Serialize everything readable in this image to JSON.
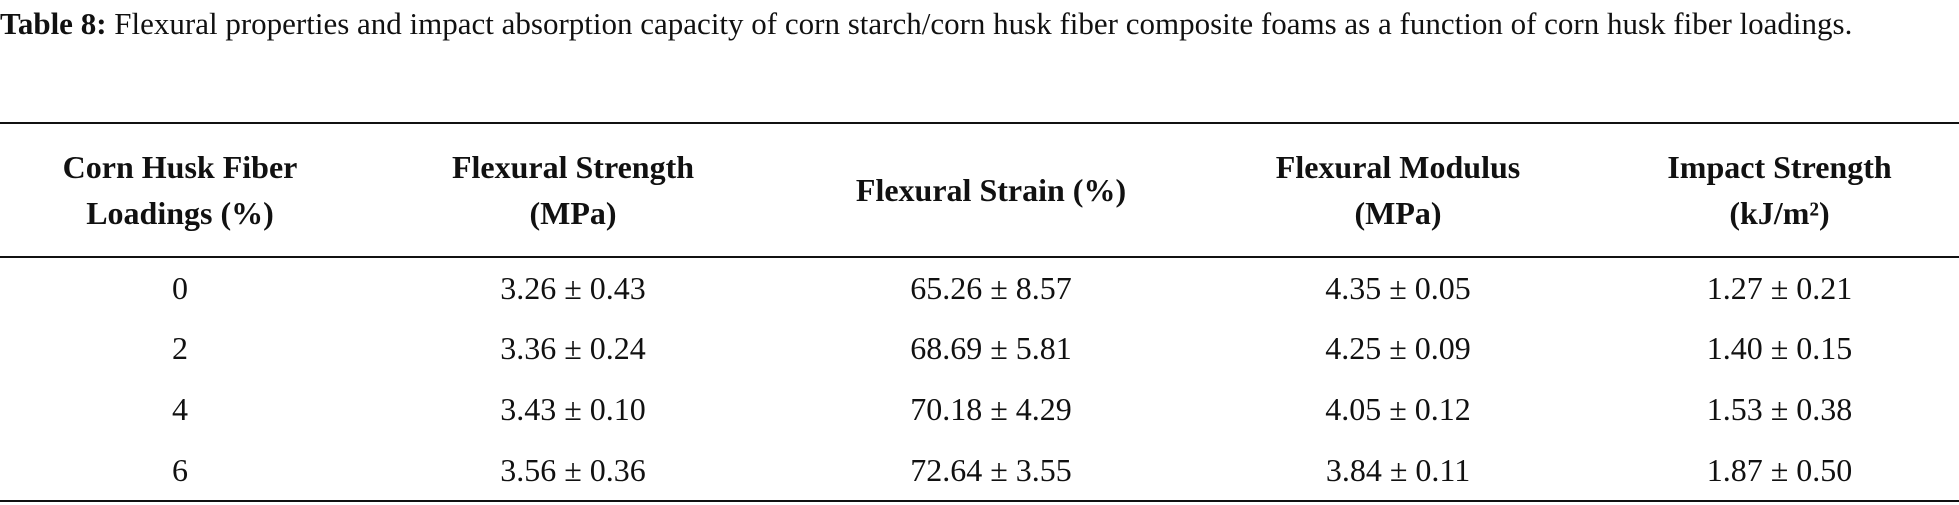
{
  "caption": {
    "label": "Table 8:",
    "text": "Flexural properties and impact absorption capacity of corn starch/corn husk fiber composite foams as a function of corn husk fiber loadings."
  },
  "table": {
    "header": [
      {
        "lines": [
          "Corn Husk Fiber",
          "Loadings (%)"
        ]
      },
      {
        "lines": [
          "Flexural Strength",
          "(MPa)"
        ]
      },
      {
        "lines": [
          "Flexural Strain (%)"
        ]
      },
      {
        "lines": [
          "Flexural Modulus",
          "(MPa)"
        ]
      },
      {
        "lines": [
          "Impact Strength",
          "(kJ/m²)"
        ]
      }
    ],
    "rows": [
      [
        "0",
        "3.26 ± 0.43",
        "65.26 ± 8.57",
        "4.35 ± 0.05",
        "1.27 ± 0.21"
      ],
      [
        "2",
        "3.36 ± 0.24",
        "68.69 ± 5.81",
        "4.25 ± 0.09",
        "1.40 ± 0.15"
      ],
      [
        "4",
        "3.43 ± 0.10",
        "70.18 ± 4.29",
        "4.05 ± 0.12",
        "1.53 ± 0.38"
      ],
      [
        "6",
        "3.56 ± 0.36",
        "72.64 ± 3.55",
        "3.84 ± 0.11",
        "1.87 ± 0.50"
      ]
    ]
  }
}
